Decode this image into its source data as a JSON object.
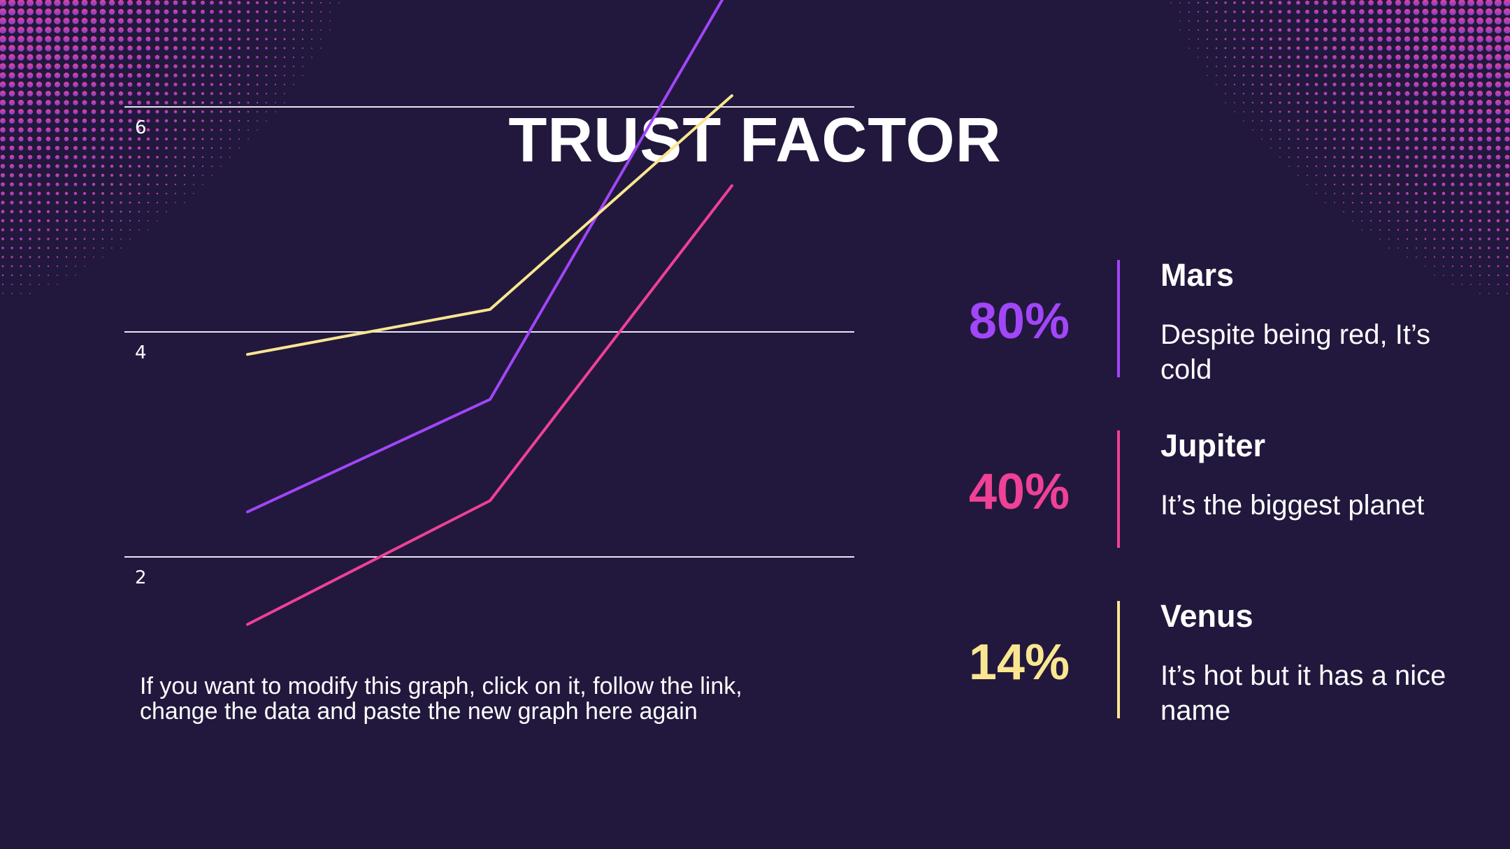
{
  "title": "TRUST FACTOR",
  "colors": {
    "background": "#22183d",
    "purple": "#a146f8",
    "pink": "#ef4196",
    "yellow": "#fae690",
    "gridline": "#e9e6f0"
  },
  "chart_data": {
    "type": "line",
    "title": "",
    "xlabel": "",
    "ylabel": "",
    "x": [
      1,
      2,
      3
    ],
    "ylim": [
      1,
      7
    ],
    "yticks": [
      2,
      4,
      6
    ],
    "series": [
      {
        "name": "Mars",
        "color": "#a146f8",
        "values": [
          2.4,
          3.4,
          7.1
        ]
      },
      {
        "name": "Jupiter",
        "color": "#ef4196",
        "values": [
          1.4,
          2.5,
          5.3
        ]
      },
      {
        "name": "Venus",
        "color": "#fae690",
        "values": [
          3.8,
          4.2,
          6.1
        ]
      }
    ]
  },
  "note": "If you want to modify this graph, click on it, follow the link,\nchange the data and paste the new graph here again",
  "stats": [
    {
      "percent": "80%",
      "name": "Mars",
      "description": "Despite being red, It’s cold",
      "color": "#a146f8"
    },
    {
      "percent": "40%",
      "name": "Jupiter",
      "description": "It’s the biggest planet",
      "color": "#ef4196"
    },
    {
      "percent": "14%",
      "name": "Venus",
      "description": "It’s hot but it has a nice name",
      "color": "#fae690"
    }
  ]
}
